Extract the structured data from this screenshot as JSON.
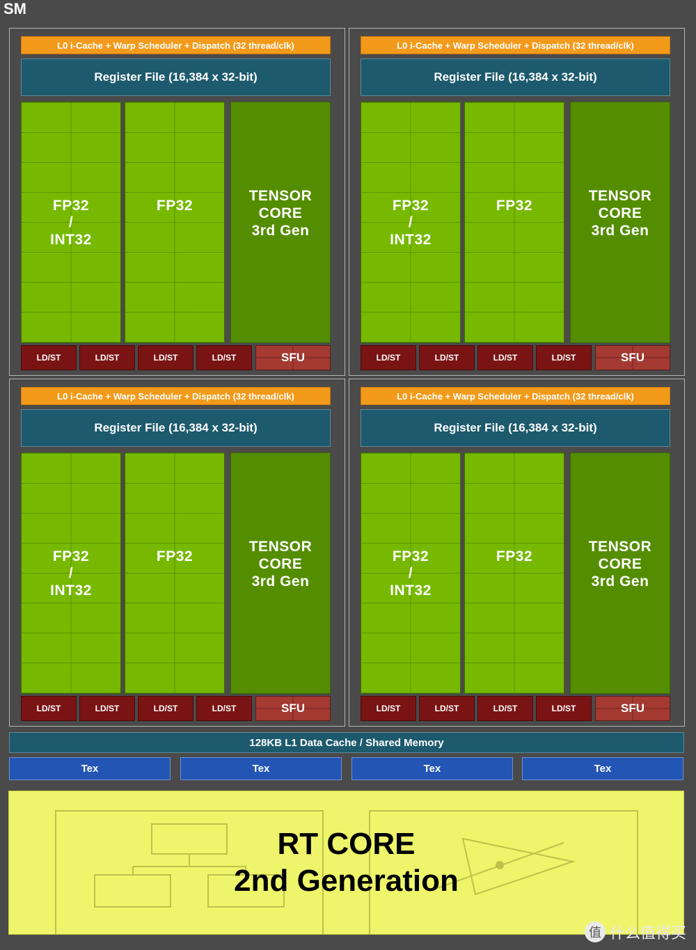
{
  "title": "SM",
  "subcore": {
    "l0_label": "L0 i-Cache + Warp Scheduler + Dispatch (32 thread/clk)",
    "regfile_label": "Register File (16,384 x 32-bit)",
    "fp_int_lines": [
      "FP32",
      "/",
      "INT32"
    ],
    "fp32_label": "FP32",
    "tensor_lines": [
      "TENSOR",
      "CORE",
      "3rd Gen"
    ],
    "ldst_label": "LD/ST",
    "sfu_label": "SFU"
  },
  "l1_label": "128KB L1 Data Cache / Shared Memory",
  "tex_units": [
    "Tex",
    "Tex",
    "Tex",
    "Tex"
  ],
  "rt_core": {
    "line1": "RT CORE",
    "line2": "2nd Generation"
  },
  "watermark": {
    "icon": "值",
    "text": "什么值得买"
  },
  "colors": {
    "l0_orange": "#f39a1a",
    "regfile_teal": "#1d5a6e",
    "fp_green": "#76b900",
    "tensor_green": "#548d00",
    "ldst_red": "#7a1414",
    "tex_blue": "#2356b4",
    "rt_yellow": "#eef56a"
  }
}
